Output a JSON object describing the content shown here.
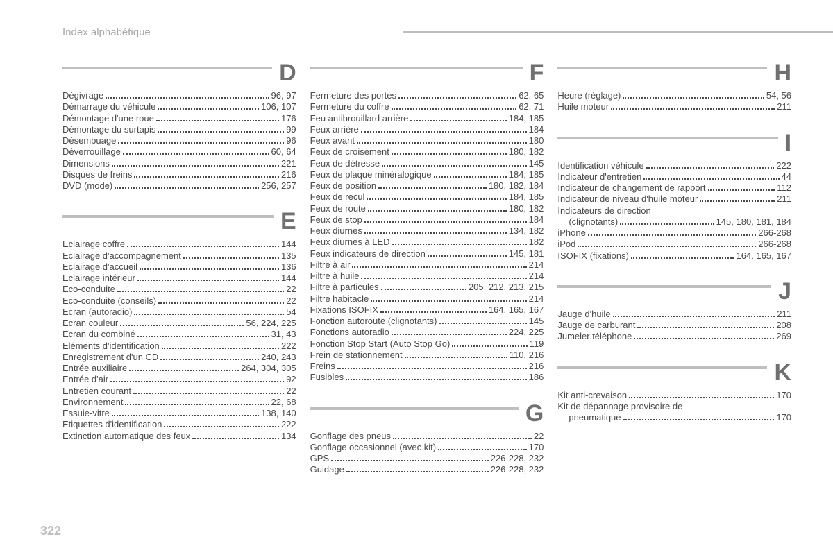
{
  "header_title": "Index alphabétique",
  "page_number": "322",
  "colors": {
    "rule": "#bfbfbf",
    "letter": "#707070",
    "text": "#4a4a4a",
    "header_text": "#a8a8a8",
    "pagenum": "#bfbfbf",
    "bg": "#ffffff"
  },
  "typography": {
    "body_fontsize": 13,
    "letter_fontsize": 34,
    "header_fontsize": 15,
    "pagenum_fontsize": 18
  },
  "columns": [
    [
      {
        "letter": "D",
        "entries": [
          {
            "label": "Dégivrage",
            "pages": "96, 97"
          },
          {
            "label": "Démarrage du véhicule",
            "pages": "106, 107"
          },
          {
            "label": "Démontage d'une roue",
            "pages": "176"
          },
          {
            "label": "Démontage du surtapis",
            "pages": "99"
          },
          {
            "label": "Désembuage",
            "pages": "96"
          },
          {
            "label": "Déverrouillage",
            "pages": "60, 64"
          },
          {
            "label": "Dimensions",
            "pages": "221"
          },
          {
            "label": "Disques de freins",
            "pages": "216"
          },
          {
            "label": "DVD (mode)",
            "pages": "256, 257"
          }
        ]
      },
      {
        "letter": "E",
        "entries": [
          {
            "label": "Eclairage coffre",
            "pages": "144"
          },
          {
            "label": "Eclairage d'accompagnement",
            "pages": "135"
          },
          {
            "label": "Eclairage d'accueil",
            "pages": "136"
          },
          {
            "label": "Eclairage intérieur",
            "pages": "144"
          },
          {
            "label": "Eco-conduite",
            "pages": "22"
          },
          {
            "label": "Eco-conduite (conseils)",
            "pages": "22"
          },
          {
            "label": "Ecran (autoradio)",
            "pages": "54"
          },
          {
            "label": "Ecran couleur",
            "pages": "56, 224, 225"
          },
          {
            "label": "Ecran du combiné",
            "pages": "31, 43"
          },
          {
            "label": "Eléments d'identification",
            "pages": "222"
          },
          {
            "label": "Enregistrement d'un CD",
            "pages": "240, 243"
          },
          {
            "label": "Entrée auxiliaire",
            "pages": "264, 304, 305"
          },
          {
            "label": "Entrée d'air",
            "pages": "92"
          },
          {
            "label": "Entretien courant",
            "pages": "22"
          },
          {
            "label": "Environnement",
            "pages": "22, 68"
          },
          {
            "label": "Essuie-vitre",
            "pages": "138, 140"
          },
          {
            "label": "Etiquettes d'identification",
            "pages": "222"
          },
          {
            "label": "Extinction automatique des feux",
            "pages": "134"
          }
        ]
      }
    ],
    [
      {
        "letter": "F",
        "entries": [
          {
            "label": "Fermeture des portes",
            "pages": "62, 65"
          },
          {
            "label": "Fermeture du coffre",
            "pages": "62, 71"
          },
          {
            "label": "Feu antibrouillard arrière",
            "pages": "184, 185"
          },
          {
            "label": "Feux arrière",
            "pages": "184"
          },
          {
            "label": "Feux avant",
            "pages": "180"
          },
          {
            "label": "Feux de croisement",
            "pages": "180, 182"
          },
          {
            "label": "Feux de détresse",
            "pages": "145"
          },
          {
            "label": "Feux de plaque minéralogique",
            "pages": "184, 185"
          },
          {
            "label": "Feux de position",
            "pages": "180, 182, 184"
          },
          {
            "label": "Feux de recul",
            "pages": "184, 185"
          },
          {
            "label": "Feux de route",
            "pages": "180, 182"
          },
          {
            "label": "Feux de stop",
            "pages": "184"
          },
          {
            "label": "Feux diurnes",
            "pages": "134, 182"
          },
          {
            "label": "Feux diurnes à LED",
            "pages": "182"
          },
          {
            "label": "Feux indicateurs de direction",
            "pages": "145, 181"
          },
          {
            "label": "Filtre à air",
            "pages": "214"
          },
          {
            "label": "Filtre à huile",
            "pages": "214"
          },
          {
            "label": "Filtre à particules",
            "pages": "205, 212, 213, 215"
          },
          {
            "label": "Filtre habitacle",
            "pages": "214"
          },
          {
            "label": "Fixations ISOFIX",
            "pages": "164, 165, 167"
          },
          {
            "label": "Fonction autoroute (clignotants)",
            "pages": "145"
          },
          {
            "label": "Fonctions autoradio",
            "pages": "224, 225"
          },
          {
            "label": "Fonction Stop Start (Auto Stop Go)",
            "pages": "119"
          },
          {
            "label": "Frein de stationnement",
            "pages": "110, 216"
          },
          {
            "label": "Freins",
            "pages": "216"
          },
          {
            "label": "Fusibles",
            "pages": "186"
          }
        ]
      },
      {
        "letter": "G",
        "entries": [
          {
            "label": "Gonflage des pneus",
            "pages": "22"
          },
          {
            "label": "Gonflage occasionnel (avec kit)",
            "pages": "170"
          },
          {
            "label": "GPS",
            "pages": "226-228, 232"
          },
          {
            "label": "Guidage",
            "pages": "226-228, 232"
          }
        ]
      }
    ],
    [
      {
        "letter": "H",
        "entries": [
          {
            "label": "Heure (réglage)",
            "pages": "54, 56"
          },
          {
            "label": "Huile moteur",
            "pages": "211"
          }
        ]
      },
      {
        "letter": "I",
        "entries": [
          {
            "label": "Identification véhicule",
            "pages": "222"
          },
          {
            "label": "Indicateur d'entretien",
            "pages": "44"
          },
          {
            "label": "Indicateur de changement de rapport",
            "pages": "112"
          },
          {
            "label": "Indicateur de niveau d'huile moteur",
            "pages": "211"
          },
          {
            "label": "Indicateurs de direction",
            "pages": "",
            "nodots": true
          },
          {
            "label": "(clignotants)",
            "pages": "145, 180, 181, 184",
            "cont": true
          },
          {
            "label": "iPhone",
            "pages": "266-268"
          },
          {
            "label": "iPod",
            "pages": "266-268"
          },
          {
            "label": "ISOFIX (fixations)",
            "pages": "164, 165, 167"
          }
        ]
      },
      {
        "letter": "J",
        "entries": [
          {
            "label": "Jauge d'huile",
            "pages": "211"
          },
          {
            "label": "Jauge de carburant",
            "pages": "208"
          },
          {
            "label": "Jumeler téléphone",
            "pages": "269"
          }
        ]
      },
      {
        "letter": "K",
        "entries": [
          {
            "label": "Kit anti-crevaison",
            "pages": "170"
          },
          {
            "label": "Kit de dépannage provisoire de",
            "pages": "",
            "nodots": true
          },
          {
            "label": "pneumatique",
            "pages": "170",
            "cont": true
          }
        ]
      }
    ]
  ]
}
